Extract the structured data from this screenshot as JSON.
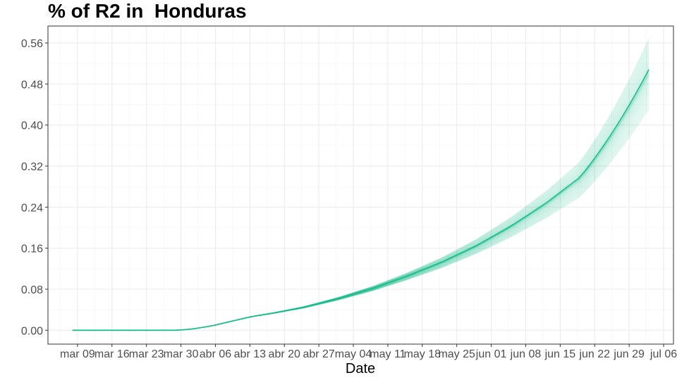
{
  "chart_data": {
    "type": "line",
    "title": "% of R2 in  Honduras",
    "xlabel": "Date",
    "ylabel": "",
    "legend": "none",
    "grid": true,
    "x_range": [
      "2020-03-03",
      "2020-07-08"
    ],
    "ylim": [
      -0.027,
      0.593
    ],
    "y_ticks": [
      0.0,
      0.08,
      0.16,
      0.24,
      0.32,
      0.4,
      0.48,
      0.56
    ],
    "y_tick_labels": [
      "0.00",
      "0.08",
      "0.16",
      "0.24",
      "0.32",
      "0.40",
      "0.48",
      "0.56"
    ],
    "x_ticks": [
      "2020-03-09",
      "2020-03-16",
      "2020-03-23",
      "2020-03-30",
      "2020-04-06",
      "2020-04-13",
      "2020-04-20",
      "2020-04-27",
      "2020-05-04",
      "2020-05-11",
      "2020-05-18",
      "2020-05-25",
      "2020-06-01",
      "2020-06-08",
      "2020-06-15",
      "2020-06-22",
      "2020-06-29",
      "2020-07-06"
    ],
    "x_tick_labels": [
      "mar 09",
      "mar 16",
      "mar 23",
      "mar 30",
      "abr 06",
      "abr 13",
      "abr 20",
      "abr 27",
      "may 04",
      "may 11",
      "may 18",
      "may 25",
      "jun 01",
      "jun 08",
      "jun 15",
      "jun 22",
      "jun 29",
      "jul 06"
    ],
    "series_color": "#1abc8c",
    "series_end_date": "2020-07-03",
    "median": {
      "x": [
        "2020-03-08",
        "2020-03-15",
        "2020-03-22",
        "2020-03-29",
        "2020-04-01",
        "2020-04-05",
        "2020-04-09",
        "2020-04-13",
        "2020-04-18",
        "2020-04-24",
        "2020-05-01",
        "2020-05-08",
        "2020-05-15",
        "2020-05-22",
        "2020-05-29",
        "2020-06-05",
        "2020-06-12",
        "2020-06-19",
        "2020-06-26",
        "2020-07-03"
      ],
      "y": [
        0.0,
        0.0,
        0.0,
        0.0,
        0.002,
        0.008,
        0.017,
        0.026,
        0.034,
        0.045,
        0.062,
        0.082,
        0.106,
        0.133,
        0.165,
        0.203,
        0.247,
        0.298,
        0.352,
        0.508
      ]
    },
    "ensemble_final_range": [
      0.43,
      0.57
    ]
  }
}
